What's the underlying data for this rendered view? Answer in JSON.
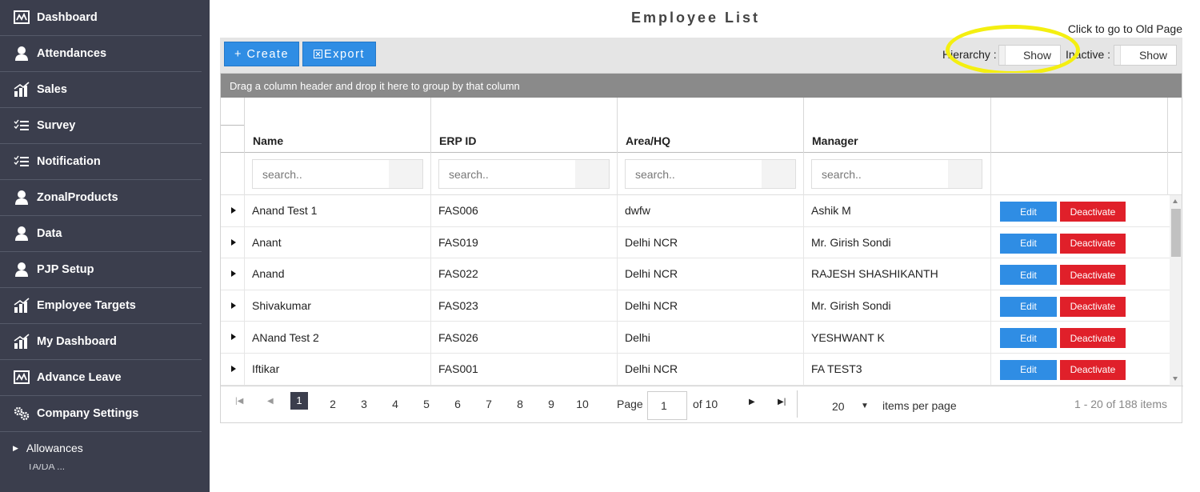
{
  "sidebar": {
    "items": [
      {
        "label": "Dashboard",
        "icon": "monitor-chart-icon"
      },
      {
        "label": "Attendances",
        "icon": "user-icon"
      },
      {
        "label": "Sales",
        "icon": "bar-chart-icon"
      },
      {
        "label": "Survey",
        "icon": "list-check-icon"
      },
      {
        "label": "Notification",
        "icon": "list-check-icon"
      },
      {
        "label": "ZonalProducts",
        "icon": "user-icon"
      },
      {
        "label": "Data",
        "icon": "user-icon"
      },
      {
        "label": "PJP Setup",
        "icon": "user-icon"
      },
      {
        "label": "Employee Targets",
        "icon": "bar-chart-icon"
      },
      {
        "label": "My Dashboard",
        "icon": "bar-chart-icon"
      },
      {
        "label": "Advance Leave",
        "icon": "monitor-chart-icon"
      },
      {
        "label": "Company Settings",
        "icon": "gears-icon"
      }
    ],
    "sub_item": "Allowances",
    "cut_item": "TA/DA ..."
  },
  "page": {
    "title": "Employee List",
    "old_page_link": "Click to go to Old Page"
  },
  "toolbar": {
    "create_label": "+ Create",
    "export_label": "Export",
    "hierarchy_label": "Hierarchy :",
    "hierarchy_toggle": "Show",
    "inactive_label": "Inactive :",
    "inactive_toggle": "Show"
  },
  "grid": {
    "group_hint": "Drag a column header and drop it here to group by that column",
    "columns": [
      "Name",
      "ERP ID",
      "Area/HQ",
      "Manager"
    ],
    "filter_placeholder": "search..",
    "edit_label": "Edit",
    "deactivate_label": "Deactivate",
    "rows": [
      {
        "name": "Anand Test 1",
        "erp": "FAS006",
        "area": "dwfw",
        "manager": "Ashik M"
      },
      {
        "name": "Anant",
        "erp": "FAS019",
        "area": "Delhi NCR",
        "manager": "Mr. Girish Sondi"
      },
      {
        "name": "Anand",
        "erp": "FAS022",
        "area": "Delhi NCR",
        "manager": "RAJESH SHASHIKANTH"
      },
      {
        "name": "Shivakumar",
        "erp": "FAS023",
        "area": "Delhi NCR",
        "manager": "Mr. Girish Sondi"
      },
      {
        "name": "ANand Test 2",
        "erp": "FAS026",
        "area": "Delhi",
        "manager": "YESHWANT K"
      },
      {
        "name": "Iftikar",
        "erp": "FAS001",
        "area": "Delhi NCR",
        "manager": "FA TEST3"
      }
    ]
  },
  "pager": {
    "pages": [
      "1",
      "2",
      "3",
      "4",
      "5",
      "6",
      "7",
      "8",
      "9",
      "10"
    ],
    "current_page": "1",
    "page_label": "Page",
    "page_value": "1",
    "of_label": "of 10",
    "page_size": "20",
    "page_size_label": "items per page",
    "range_info": "1 - 20 of 188 items"
  },
  "colors": {
    "sidebar_bg": "#3b3e4d",
    "primary_button": "#2f8de4",
    "danger_button": "#e0202a",
    "highlight_annotation": "#f4ef10"
  }
}
